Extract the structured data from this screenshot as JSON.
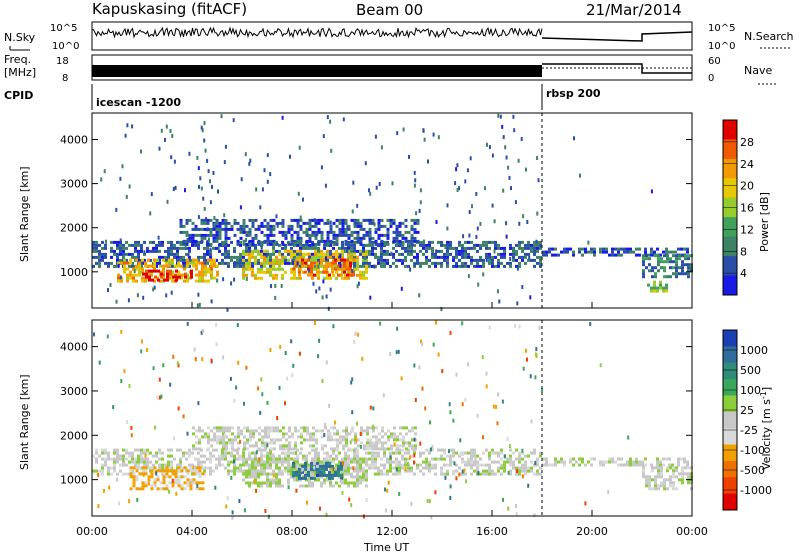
{
  "header": {
    "station": "Kapuskasing (fitACF)",
    "beam": "Beam 00",
    "date": "21/Mar/2014"
  },
  "summary": {
    "nsky_label": "N.Sky",
    "nsky_ticks": [
      "10^5",
      "10^0"
    ],
    "nsearch_label": "N.Search",
    "nsearch_ticks": [
      "10^5",
      "10^0"
    ],
    "freq_label": "Freq.",
    "freq_unit": "[MHz]",
    "freq_ticks": [
      "18",
      "8"
    ],
    "nave_label": "Nave",
    "nave_ticks": [
      "60",
      "0"
    ],
    "cpid_label": "CPID",
    "cpid_segments": [
      {
        "label": "icescan -1200",
        "start_hour": 0,
        "end_hour": 18
      },
      {
        "label": "rbsp 200",
        "start_hour": 18,
        "end_hour": 24
      }
    ]
  },
  "axes": {
    "ylabel": "Slant Range [km]",
    "xlabel": "Time UT",
    "yticks": [
      "1000",
      "2000",
      "3000",
      "4000"
    ],
    "xticks": [
      "00:00",
      "04:00",
      "08:00",
      "12:00",
      "16:00",
      "20:00",
      "00:00"
    ]
  },
  "power_colorbar": {
    "title": "Power [dB]",
    "labels": [
      "28",
      "24",
      "20",
      "16",
      "12",
      "8",
      "4"
    ],
    "colors": [
      "#e00000",
      "#f05a00",
      "#f29a00",
      "#e6c800",
      "#96cc2c",
      "#3fa15a",
      "#3c8264",
      "#2a4fa8",
      "#1a1ae6"
    ]
  },
  "velocity_colorbar": {
    "title": "Velocity [m s",
    "title_sup": "-1",
    "title_end": "]",
    "labels": [
      "1000",
      "500",
      "100",
      "25",
      "-25",
      "-100",
      "-500",
      "-1000"
    ],
    "colors": [
      "#1a3fb4",
      "#2f6e9c",
      "#2f8c78",
      "#3aa85a",
      "#8ccd3c",
      "#c8c8c8",
      "#d9d9d9",
      "#f2a000",
      "#f07000",
      "#f04000",
      "#e00000"
    ]
  },
  "chart_data": {
    "type": "heatmap",
    "title": "Kapuskasing (fitACF)",
    "xlabel": "Time UT",
    "ylabel": "Slant Range [km]",
    "xlim": [
      0,
      24
    ],
    "ylim": [
      180,
      4600
    ],
    "panels": [
      {
        "name": "Power [dB]",
        "clim": [
          0,
          30
        ],
        "regions": [
          {
            "t": [
              0.0,
              18.0
            ],
            "r": [
              1100,
              1700
            ],
            "value": 6
          },
          {
            "t": [
              1.0,
              5.0
            ],
            "r": [
              800,
              1300
            ],
            "value": 20
          },
          {
            "t": [
              2.0,
              4.0
            ],
            "r": [
              800,
              1050
            ],
            "value": 28
          },
          {
            "t": [
              6.0,
              11.0
            ],
            "r": [
              850,
              1500
            ],
            "value": 18
          },
          {
            "t": [
              8.0,
              10.5
            ],
            "r": [
              900,
              1300
            ],
            "value": 24
          },
          {
            "t": [
              3.5,
              13.0
            ],
            "r": [
              1600,
              2200
            ],
            "value": 5
          },
          {
            "t": [
              18.0,
              24.0
            ],
            "r": [
              1350,
              1550
            ],
            "value": 5
          },
          {
            "t": [
              22.0,
              24.0
            ],
            "r": [
              900,
              1400
            ],
            "value": 8
          },
          {
            "t": [
              22.2,
              23.0
            ],
            "r": [
              550,
              800
            ],
            "value": 14
          }
        ]
      },
      {
        "name": "Velocity [m s-1]",
        "clim": [
          -1000,
          1000
        ],
        "regions": [
          {
            "t": [
              0.0,
              18.0
            ],
            "r": [
              1100,
              1700
            ],
            "value": 0
          },
          {
            "t": [
              1.5,
              4.5
            ],
            "r": [
              800,
              1300
            ],
            "value": -300
          },
          {
            "t": [
              6.0,
              11.0
            ],
            "r": [
              850,
              1500
            ],
            "value": 100
          },
          {
            "t": [
              8.0,
              10.0
            ],
            "r": [
              1000,
              1400
            ],
            "value": 700
          },
          {
            "t": [
              4.0,
              13.0
            ],
            "r": [
              1700,
              2200
            ],
            "value": 0
          },
          {
            "t": [
              18.0,
              24.0
            ],
            "r": [
              1300,
              1500
            ],
            "value": 0
          },
          {
            "t": [
              22.0,
              24.0
            ],
            "r": [
              800,
              1300
            ],
            "value": 0
          }
        ]
      }
    ]
  }
}
